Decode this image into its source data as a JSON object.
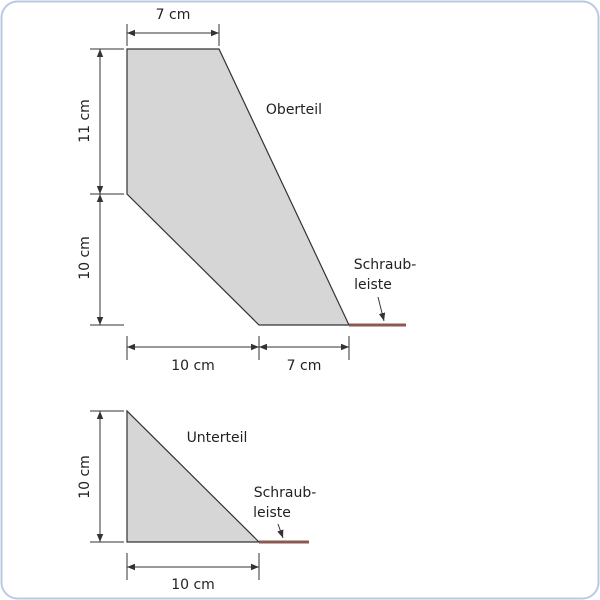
{
  "upper_part": {
    "label": "Oberteil",
    "dim_top": "7 cm",
    "dim_left_upper": "11 cm",
    "dim_left_lower": "10 cm",
    "dim_bottom_left": "10 cm",
    "dim_bottom_right": "7 cm",
    "strip_label": [
      "Schraub-",
      "leiste"
    ]
  },
  "lower_part": {
    "label": "Unterteil",
    "dim_left": "10 cm",
    "dim_bottom": "10 cm",
    "strip_label": [
      "Schraub-",
      "leiste"
    ]
  }
}
